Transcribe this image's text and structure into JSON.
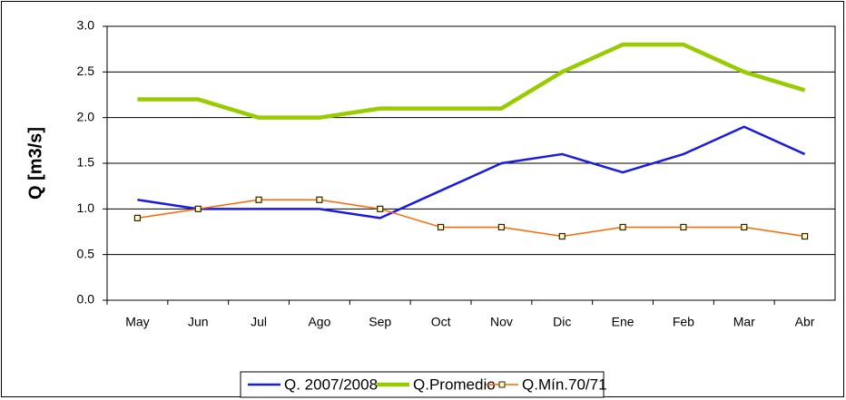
{
  "chart_data": {
    "type": "line",
    "y_label": "Q [m3/s]",
    "categories": [
      "May",
      "Jun",
      "Jul",
      "Ago",
      "Sep",
      "Oct",
      "Nov",
      "Dic",
      "Ene",
      "Feb",
      "Mar",
      "Abr"
    ],
    "series": [
      {
        "name": "Q. 2007/2008",
        "color": "#1a1ae6",
        "width": 2.5,
        "marker": false,
        "values": [
          1.1,
          1.0,
          1.0,
          1.0,
          0.9,
          1.2,
          1.5,
          1.6,
          1.4,
          1.6,
          1.9,
          1.6
        ]
      },
      {
        "name": "Q.Promedio",
        "color": "#99cc00",
        "width": 4.5,
        "marker": false,
        "values": [
          2.2,
          2.2,
          2.0,
          2.0,
          2.1,
          2.1,
          2.1,
          2.5,
          2.8,
          2.8,
          2.5,
          2.3
        ]
      },
      {
        "name": "Q.Mín.70/71",
        "color": "#ff6600",
        "width": 1.5,
        "marker": true,
        "values": [
          0.9,
          1.0,
          1.1,
          1.1,
          1.0,
          0.8,
          0.8,
          0.7,
          0.8,
          0.8,
          0.8,
          0.7
        ]
      }
    ],
    "ylim": [
      0,
      3
    ],
    "yticks": [
      {
        "value": 0,
        "label": "0.0"
      },
      {
        "value": 0.5,
        "label": "0.5"
      },
      {
        "value": 1,
        "label": "1.0"
      },
      {
        "value": 1.5,
        "label": "1.5"
      },
      {
        "value": 2,
        "label": "2.0"
      },
      {
        "value": 2.5,
        "label": "2.5"
      },
      {
        "value": 3,
        "label": "3.0"
      }
    ],
    "grid": true,
    "legend": "bottom"
  }
}
